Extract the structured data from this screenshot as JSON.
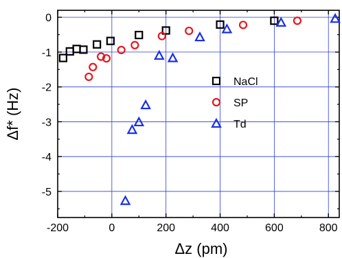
{
  "chart_data": {
    "type": "scatter",
    "title": "",
    "xlabel": "Δz (pm)",
    "ylabel": "Δf* (Hz)",
    "xlim": [
      -200,
      840
    ],
    "ylim": [
      -5.75,
      0.2
    ],
    "x_ticks": [
      -200,
      0,
      200,
      400,
      600,
      800
    ],
    "y_ticks": [
      0,
      -1,
      -2,
      -3,
      -4,
      -5
    ],
    "x_tick_labels": [
      "-200",
      "0",
      "200",
      "400",
      "600",
      "800"
    ],
    "y_tick_labels": [
      "0",
      "-1",
      "-2",
      "-3",
      "-4",
      "-5"
    ],
    "grid": true,
    "grid_color": "#2b3bd4",
    "legend_position": "right-middle",
    "series": [
      {
        "name": "NaCl",
        "marker": "square",
        "color": "#000000",
        "points": [
          [
            -180,
            -1.17
          ],
          [
            -155,
            -0.98
          ],
          [
            -130,
            -0.91
          ],
          [
            -105,
            -0.93
          ],
          [
            -55,
            -0.78
          ],
          [
            -5,
            -0.68
          ],
          [
            100,
            -0.51
          ],
          [
            200,
            -0.38
          ],
          [
            400,
            -0.21
          ],
          [
            600,
            -0.1
          ]
        ]
      },
      {
        "name": "SP",
        "marker": "circle",
        "color": "#e8141b",
        "points": [
          [
            -85,
            -1.71
          ],
          [
            -70,
            -1.43
          ],
          [
            -40,
            -1.13
          ],
          [
            -20,
            -1.18
          ],
          [
            35,
            -0.94
          ],
          [
            85,
            -0.8
          ],
          [
            185,
            -0.54
          ],
          [
            285,
            -0.39
          ],
          [
            485,
            -0.22
          ],
          [
            685,
            -0.1
          ]
        ]
      },
      {
        "name": "Td",
        "marker": "triangle",
        "color": "#1a2fe6",
        "points": [
          [
            50,
            -5.27
          ],
          [
            75,
            -3.23
          ],
          [
            100,
            -3.01
          ],
          [
            125,
            -2.52
          ],
          [
            175,
            -1.1
          ],
          [
            225,
            -1.17
          ],
          [
            325,
            -0.57
          ],
          [
            425,
            -0.34
          ],
          [
            625,
            -0.15
          ],
          [
            825,
            -0.04
          ]
        ]
      }
    ]
  }
}
